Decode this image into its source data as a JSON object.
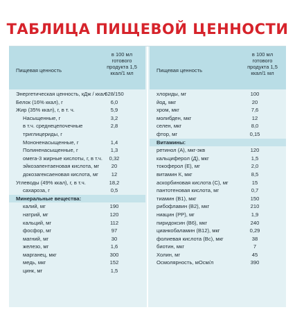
{
  "title": "ТАБЛИЦА ПИЩЕВОЙ ЦЕННОСТИ",
  "columns": {
    "left": {
      "name_header": "Пищевая ценность",
      "value_header": "в 100 мл готового продукта 1,5 ккал/1 мл"
    },
    "right": {
      "name_header": "Пищевая ценность",
      "value_header": "в 100 мл готового продукта 1,5 ккал/1 мл"
    }
  },
  "left_rows": [
    {
      "name": "Энергетическая ценность, кДж / ккал",
      "value": "628/150"
    },
    {
      "name": "Белок (16% ккал), г",
      "value": "6,0"
    },
    {
      "name": "Жир (35% ккал), г, в т. ч.",
      "value": "5,9"
    },
    {
      "name": "Насыщенные, г",
      "value": "3,2",
      "sub": true
    },
    {
      "name": "в т.ч. среднецепочечные",
      "value": "2,8",
      "sub": true
    },
    {
      "name": "триглицериды, г",
      "value": "",
      "sub": true
    },
    {
      "name": "Мононенасыщенные, г",
      "value": "1,4",
      "sub": true
    },
    {
      "name": "Полиненасыщенные, г",
      "value": "1,3",
      "sub": true
    },
    {
      "name": "омега-3 жирные кислоты, г, в т.ч.",
      "value": "0,32",
      "sub": true
    },
    {
      "name": "эйкозапентаеновая кислота, мг",
      "value": "20",
      "sub": true
    },
    {
      "name": "докозагексаеновая кислота, мг",
      "value": "12",
      "sub": true
    },
    {
      "name": "Углеводы (49% ккал), г, в т.ч.",
      "value": "18,2"
    },
    {
      "name": "сахароза, г",
      "value": "0,5",
      "sub": true
    },
    {
      "name": "Минеральные вещества:",
      "value": "",
      "section": true
    },
    {
      "name": "калий, мг",
      "value": "190",
      "sub": true
    },
    {
      "name": "натрий, мг",
      "value": "120",
      "sub": true
    },
    {
      "name": "кальций, мг",
      "value": "112",
      "sub": true
    },
    {
      "name": "фосфор, мг",
      "value": "97",
      "sub": true
    },
    {
      "name": "магний, мг",
      "value": "30",
      "sub": true
    },
    {
      "name": "железо, мг",
      "value": "1,6",
      "sub": true
    },
    {
      "name": "марганец, мкг",
      "value": "300",
      "sub": true
    },
    {
      "name": "медь, мкг",
      "value": "152",
      "sub": true
    },
    {
      "name": "цинк, мг",
      "value": "1,5",
      "sub": true
    }
  ],
  "right_rows": [
    {
      "name": "хлориды, мг",
      "value": "100"
    },
    {
      "name": "йод, мкг",
      "value": "20"
    },
    {
      "name": "хром, мкг",
      "value": "7,6"
    },
    {
      "name": "молибден, мкг",
      "value": "12"
    },
    {
      "name": "селен, мкг",
      "value": "8,0"
    },
    {
      "name": "фтор, мг",
      "value": "0,15"
    },
    {
      "name": "Витамины:",
      "value": "",
      "section": true
    },
    {
      "name": "ретинол (А), мкг-экв",
      "value": "120"
    },
    {
      "name": "кальциферол (Д), мкг",
      "value": "1,5"
    },
    {
      "name": "токоферол (Е), мг",
      "value": "2,0"
    },
    {
      "name": "витамин К, мкг",
      "value": "8,5"
    },
    {
      "name": "аскорбиновая кислота (С), мг",
      "value": "15"
    },
    {
      "name": "пантотеновая кислота, мг",
      "value": "0,7"
    },
    {
      "name": "тиамин (В1), мкг",
      "value": "150"
    },
    {
      "name": "рибофлавин (В2), мкг",
      "value": "210"
    },
    {
      "name": "ниацин (РР), мг",
      "value": "1,9"
    },
    {
      "name": "пиридоксин (В6), мкг",
      "value": "240"
    },
    {
      "name": "цианкобаламин (В12), мкг",
      "value": "0,29"
    },
    {
      "name": "фолиевая кислота (Вс), мкг",
      "value": "38"
    },
    {
      "name": "биотин, мкг",
      "value": "7"
    },
    {
      "name": "Холин, мг",
      "value": "45"
    },
    {
      "name": "Осмолярность, мОсм/л",
      "value": "390"
    }
  ]
}
